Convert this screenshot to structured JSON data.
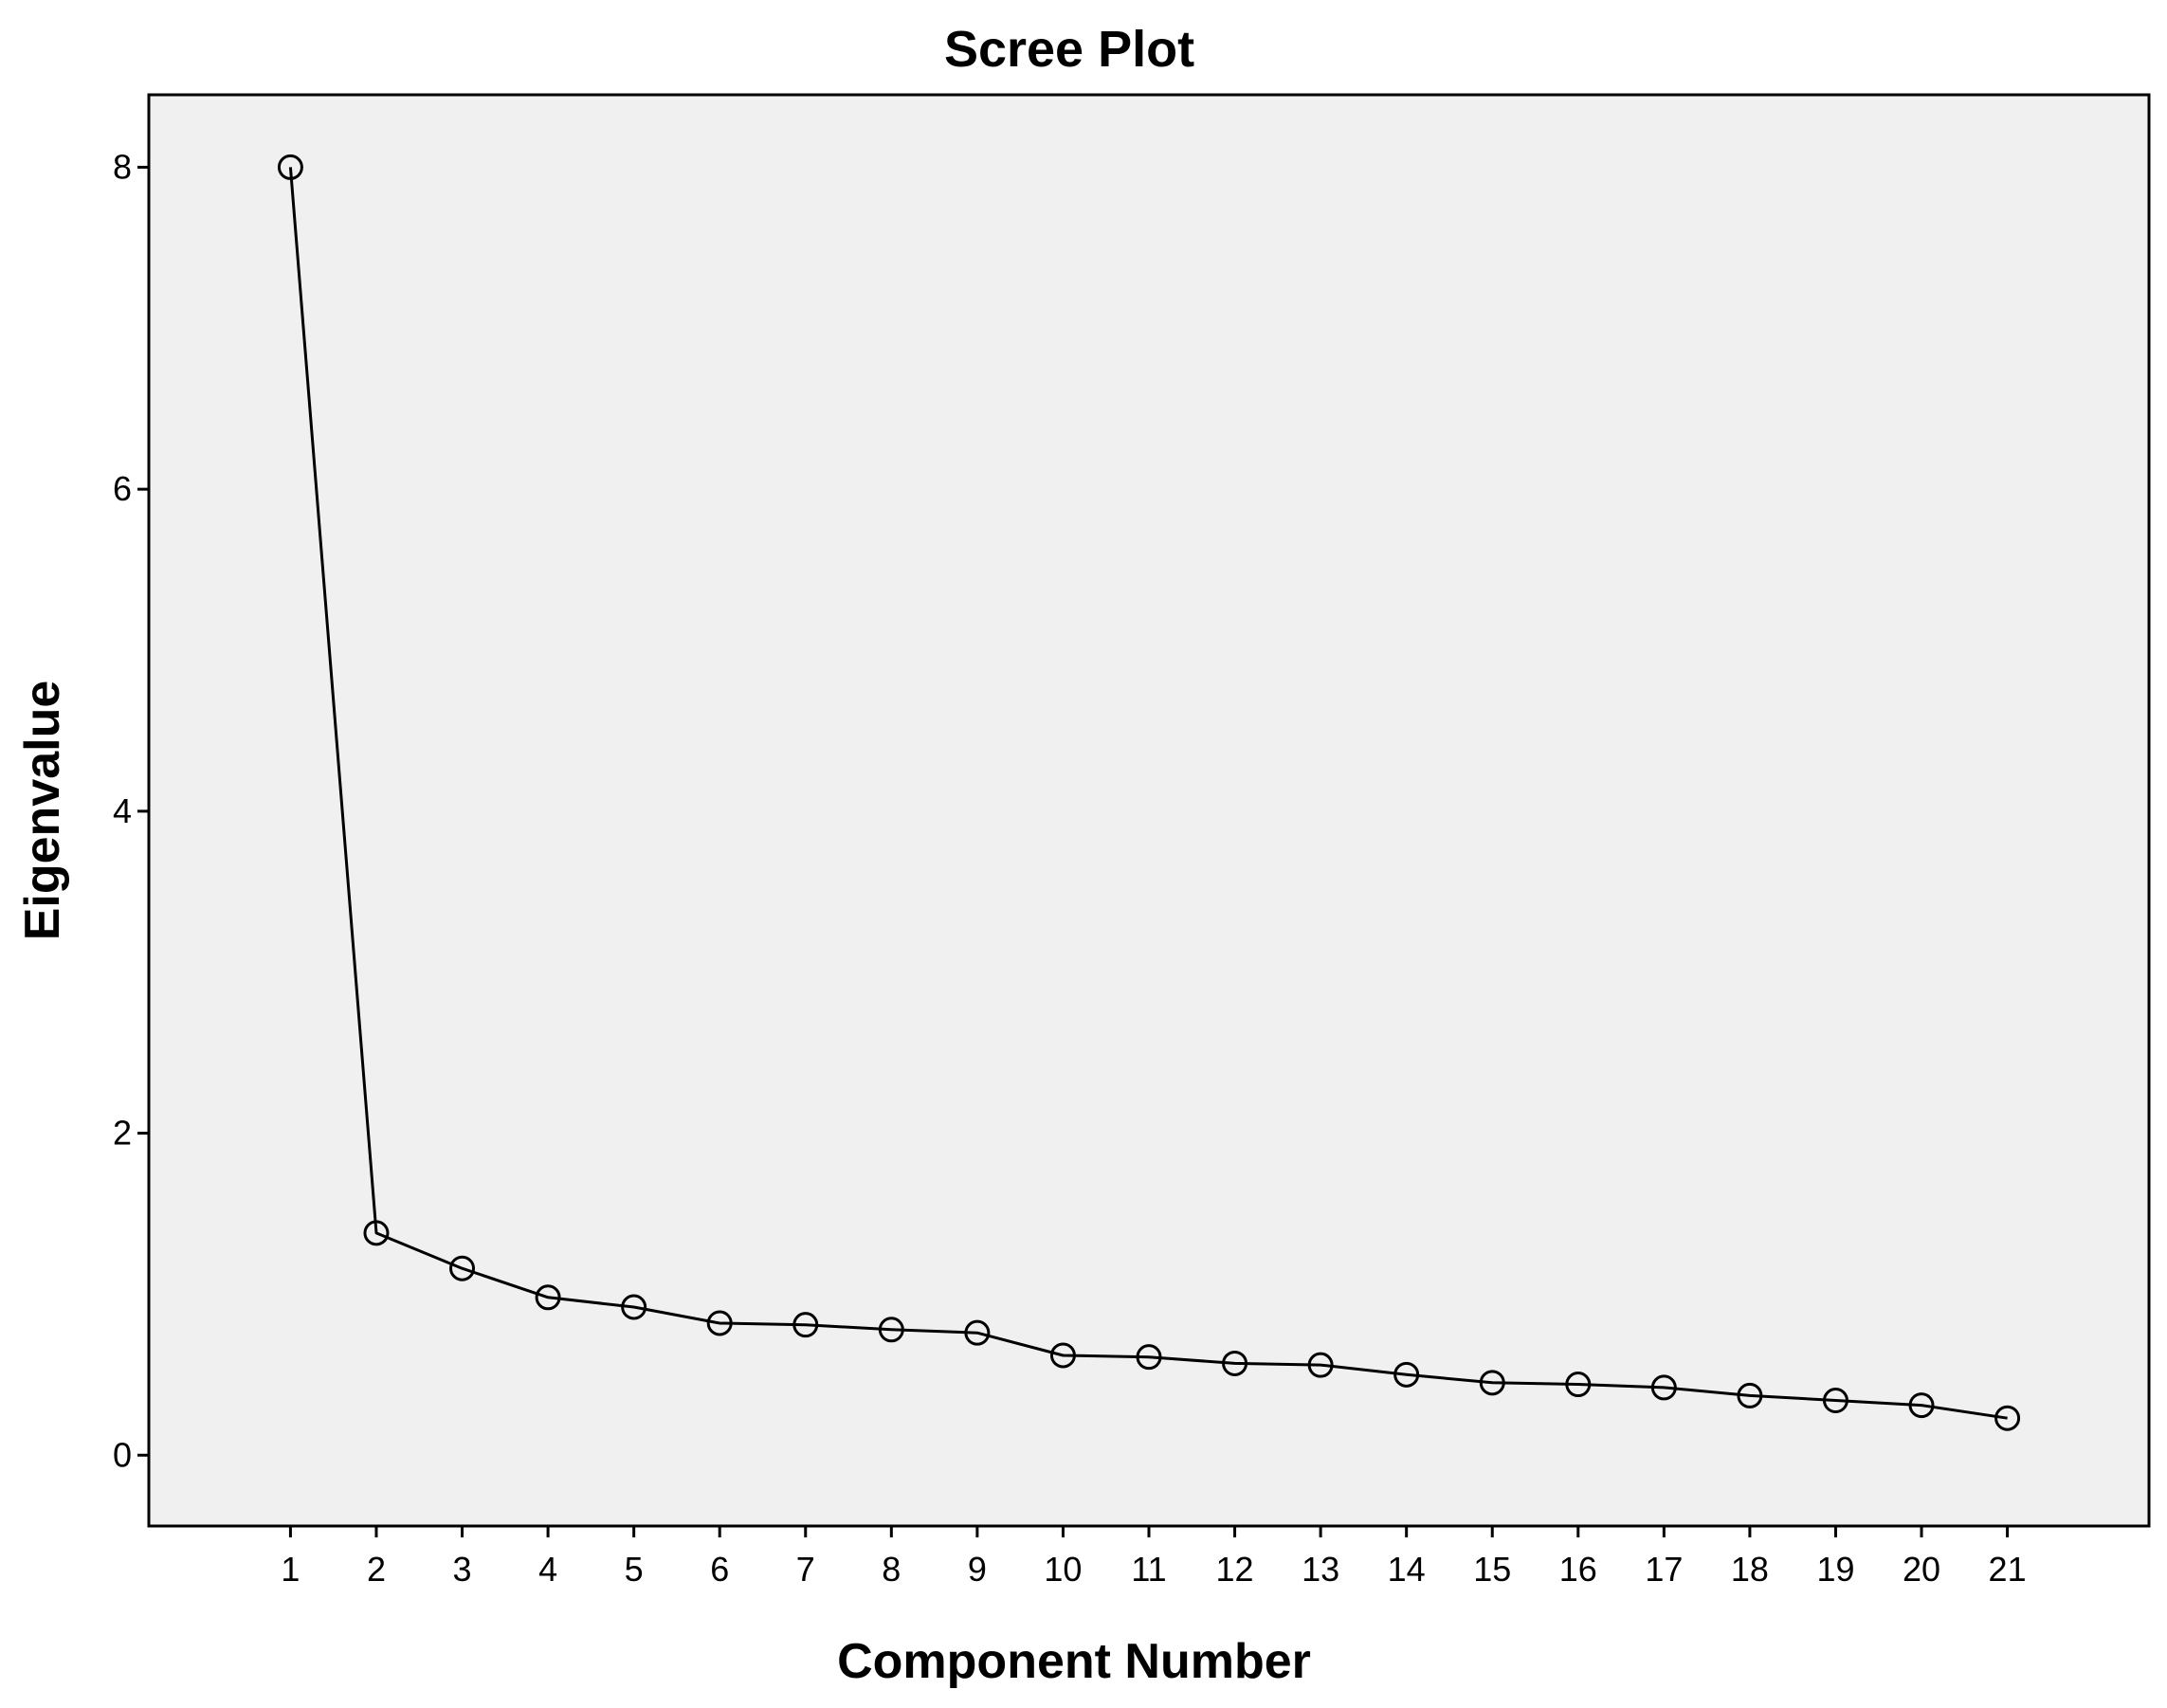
{
  "chart_data": {
    "type": "line",
    "title": "Scree Plot",
    "xlabel": "Component Number",
    "ylabel": "Eigenvalue",
    "x": [
      1,
      2,
      3,
      4,
      5,
      6,
      7,
      8,
      9,
      10,
      11,
      12,
      13,
      14,
      15,
      16,
      17,
      18,
      19,
      20,
      21
    ],
    "values": [
      8.0,
      1.38,
      1.16,
      0.98,
      0.92,
      0.82,
      0.81,
      0.78,
      0.76,
      0.62,
      0.61,
      0.57,
      0.56,
      0.5,
      0.45,
      0.44,
      0.42,
      0.37,
      0.34,
      0.31,
      0.23
    ],
    "xlim": [
      -0.65,
      22.65
    ],
    "ylim": [
      -0.44,
      8.45
    ],
    "x_ticks": [
      "1",
      "2",
      "3",
      "4",
      "5",
      "6",
      "7",
      "8",
      "9",
      "10",
      "11",
      "12",
      "13",
      "14",
      "15",
      "16",
      "17",
      "18",
      "19",
      "20",
      "21"
    ],
    "y_ticks": [
      0,
      2,
      4,
      6,
      8
    ],
    "grid": false,
    "legend": "none",
    "marker": "open-circle",
    "colors": {
      "plot_background": "#f0f0f0",
      "line": "#000000",
      "frame": "#000000"
    }
  }
}
